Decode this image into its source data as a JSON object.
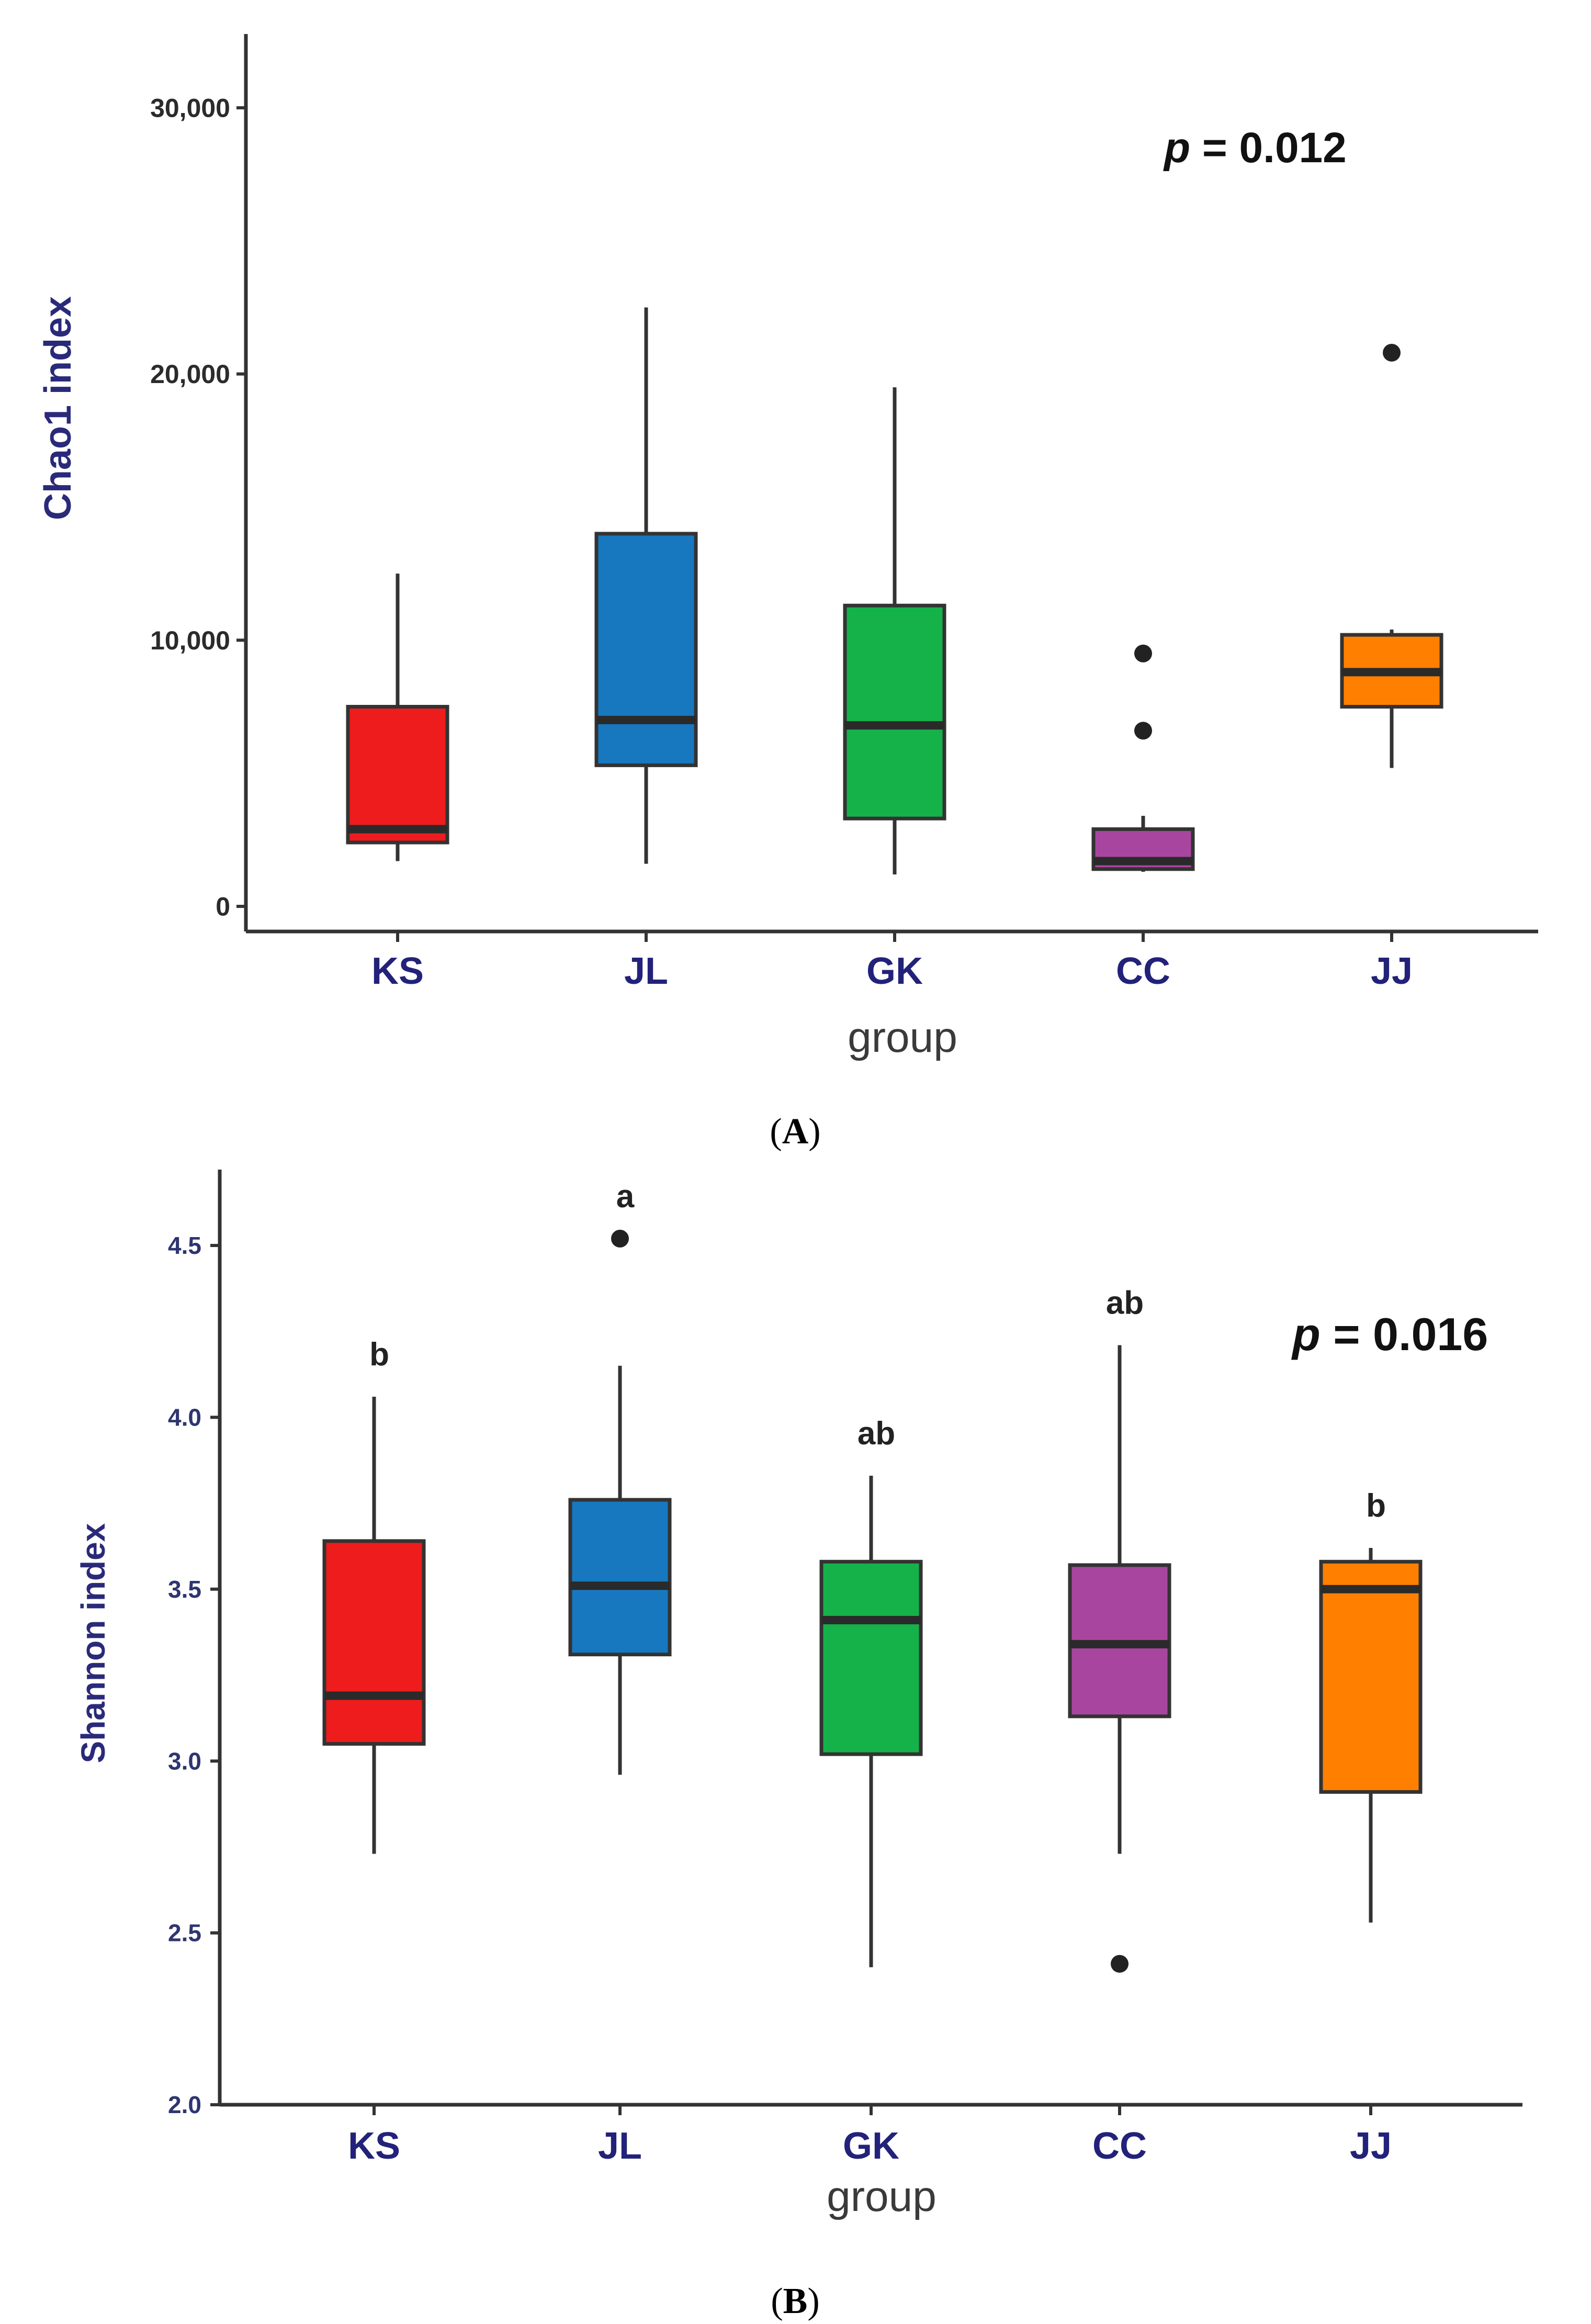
{
  "chart_data": [
    {
      "type": "box",
      "panel_label": "A",
      "ylabel": "Chao1 index",
      "xlabel": "group",
      "ylim": [
        -500,
        32000
      ],
      "yticks": [
        0,
        10000,
        20000,
        30000
      ],
      "ytick_labels": [
        "0",
        "10,000",
        "20,000",
        "30,000"
      ],
      "annotation": {
        "p_symbol": "p",
        "p_value_text": "= 0.012"
      },
      "categories": [
        "KS",
        "JL",
        "GK",
        "CC",
        "JJ"
      ],
      "boxes": [
        {
          "group": "KS",
          "color": "#ee1c1c",
          "whisker_low": 1700,
          "q1": 2400,
          "median": 2900,
          "q3": 7500,
          "whisker_high": 12500,
          "outliers": []
        },
        {
          "group": "JL",
          "color": "#1778bf",
          "whisker_low": 1600,
          "q1": 5300,
          "median": 7000,
          "q3": 14000,
          "whisker_high": 22500,
          "outliers": []
        },
        {
          "group": "GK",
          "color": "#15b24a",
          "whisker_low": 1200,
          "q1": 3300,
          "median": 6800,
          "q3": 11300,
          "whisker_high": 19500,
          "outliers": []
        },
        {
          "group": "CC",
          "color": "#a8469f",
          "whisker_low": 1300,
          "q1": 1400,
          "median": 1700,
          "q3": 2900,
          "whisker_high": 3400,
          "outliers": [
            6600,
            9500
          ]
        },
        {
          "group": "JJ",
          "color": "#ff8000",
          "whisker_low": 5200,
          "q1": 7500,
          "median": 8800,
          "q3": 10200,
          "whisker_high": 10400,
          "outliers": [
            20800
          ]
        }
      ]
    },
    {
      "type": "box",
      "panel_label": "B",
      "ylabel": "Shannon index",
      "xlabel": "group",
      "ylim": [
        2.0,
        4.75
      ],
      "yticks": [
        2.0,
        2.5,
        3.0,
        3.5,
        4.0,
        4.5
      ],
      "ytick_labels": [
        "2.0",
        "2.5",
        "3.0",
        "3.5",
        "4.0",
        "4.5"
      ],
      "annotation": {
        "p_symbol": "p",
        "p_value_text": "= 0.016"
      },
      "categories": [
        "KS",
        "JL",
        "GK",
        "CC",
        "JJ"
      ],
      "boxes": [
        {
          "group": "KS",
          "color": "#ee1c1c",
          "whisker_low": 2.73,
          "q1": 3.05,
          "median": 3.19,
          "q3": 3.64,
          "whisker_high": 4.06,
          "outliers": [],
          "letter": "b"
        },
        {
          "group": "JL",
          "color": "#1778bf",
          "whisker_low": 2.96,
          "q1": 3.31,
          "median": 3.51,
          "q3": 3.76,
          "whisker_high": 4.15,
          "outliers": [
            4.52
          ],
          "letter": "a"
        },
        {
          "group": "GK",
          "color": "#15b24a",
          "whisker_low": 2.4,
          "q1": 3.02,
          "median": 3.41,
          "q3": 3.58,
          "whisker_high": 3.83,
          "outliers": [],
          "letter": "ab"
        },
        {
          "group": "CC",
          "color": "#a8469f",
          "whisker_low": 2.73,
          "q1": 3.13,
          "median": 3.34,
          "q3": 3.57,
          "whisker_high": 4.21,
          "outliers": [
            2.41
          ],
          "letter": "ab"
        },
        {
          "group": "JJ",
          "color": "#ff8000",
          "whisker_low": 2.53,
          "q1": 2.91,
          "median": 3.5,
          "q3": 3.58,
          "whisker_high": 3.62,
          "outliers": [],
          "letter": "b"
        }
      ]
    }
  ]
}
